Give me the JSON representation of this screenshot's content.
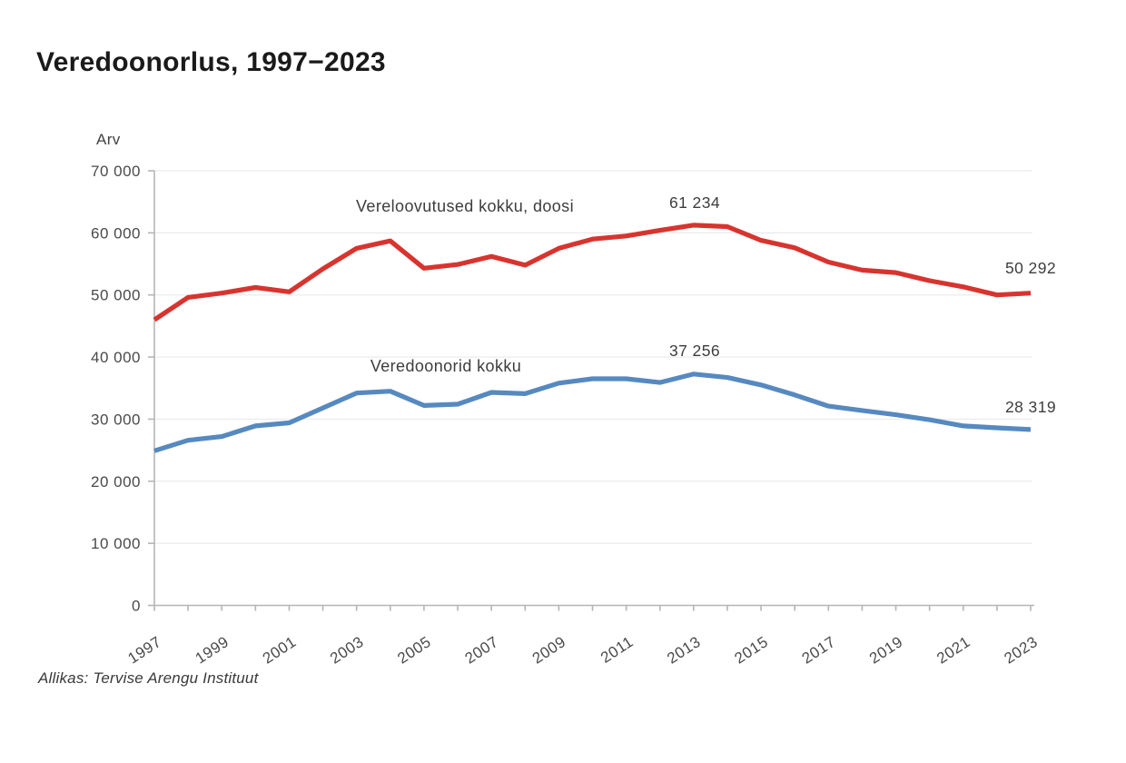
{
  "page": {
    "source": "Allikas: Tervise Arengu Instituut"
  },
  "chart_data": {
    "type": "line",
    "title": "Veredoonorlus, 1997−2023",
    "ylabel": "Arv",
    "xlabel": "",
    "ylim": [
      0,
      70000
    ],
    "grid": "horizontal",
    "legend_position": "inline-labels",
    "x": [
      1997,
      1998,
      1999,
      2000,
      2001,
      2002,
      2003,
      2004,
      2005,
      2006,
      2007,
      2008,
      2009,
      2010,
      2011,
      2012,
      2013,
      2014,
      2015,
      2016,
      2017,
      2018,
      2019,
      2020,
      2021,
      2022,
      2023
    ],
    "x_tick_labels": [
      "1997",
      "1999",
      "2001",
      "2003",
      "2005",
      "2007",
      "2009",
      "2011",
      "2013",
      "2015",
      "2017",
      "2019",
      "2021",
      "2023"
    ],
    "y_ticks": [
      0,
      10000,
      20000,
      30000,
      40000,
      50000,
      60000,
      70000
    ],
    "y_tick_labels": [
      "0",
      "10 000",
      "20 000",
      "30 000",
      "40 000",
      "50 000",
      "60 000",
      "70 000"
    ],
    "series": [
      {
        "name": "Vereloovutused kokku, doosi",
        "color": "#d8342f",
        "values": [
          46000,
          49600,
          50300,
          51200,
          50500,
          54200,
          57500,
          58700,
          54300,
          54900,
          56200,
          54800,
          57500,
          59000,
          59500,
          60400,
          61234,
          61000,
          58800,
          57600,
          55300,
          54000,
          53600,
          52300,
          51300,
          50000,
          50292
        ]
      },
      {
        "name": "Veredoonorid kokku",
        "color": "#5689c0",
        "values": [
          24900,
          26600,
          27200,
          28900,
          29400,
          31800,
          34200,
          34500,
          32200,
          32400,
          34300,
          34100,
          35800,
          36500,
          36500,
          35900,
          37256,
          36700,
          35500,
          33900,
          32100,
          31400,
          30700,
          29900,
          28900,
          28600,
          28319
        ]
      }
    ],
    "annotations": [
      {
        "text": "61 234",
        "series": "Vereloovutused kokku, doosi",
        "year": 2013,
        "value": 61234
      },
      {
        "text": "37 256",
        "series": "Veredoonorid kokku",
        "year": 2013,
        "value": 37256
      },
      {
        "text": "50 292",
        "series": "Vereloovutused kokku, doosi",
        "year": 2023,
        "value": 50292
      },
      {
        "text": "28 319",
        "series": "Veredoonorid kokku",
        "year": 2023,
        "value": 28319
      }
    ],
    "style": {
      "grid_color": "#ebebeb",
      "axis_color": "#b5b5b5",
      "tick_label_color": "#4a4a4a"
    }
  }
}
